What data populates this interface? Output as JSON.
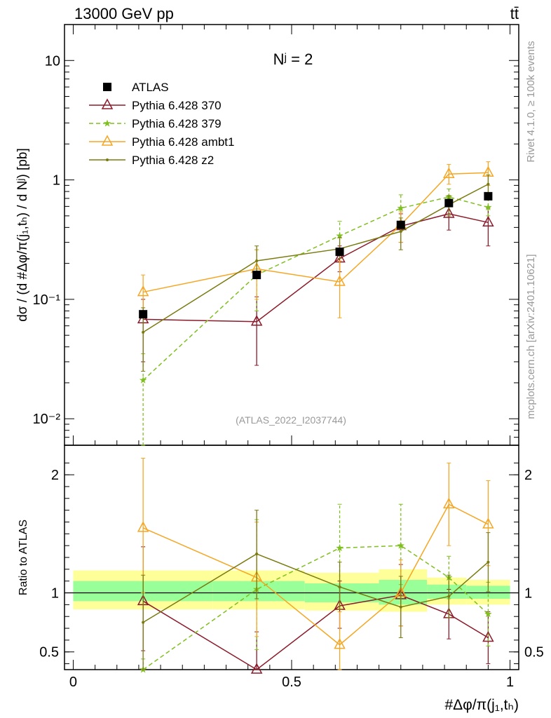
{
  "header": {
    "left": "13000 GeV pp",
    "right": "tt̄"
  },
  "side_labels": {
    "rivet": "Rivet 4.1.0, ≥ 100k events",
    "mcplots": "mcplots.cern.ch [arXiv:2401.10621]"
  },
  "chart_data": [
    {
      "type": "line",
      "panel": "main",
      "title": "Nʲ = 2",
      "watermark": "(ATLAS_2022_I2037744)",
      "ylabel": "dσ / (d #Δφ/π(j₁,tₕ) / d Nʲ) [pb]",
      "yscale": "log",
      "ylim": [
        0.006,
        20
      ],
      "xlim": [
        -0.02,
        1.02
      ],
      "yticks": [
        {
          "v": 0.01,
          "label": "10⁻²"
        },
        {
          "v": 0.1,
          "label": "10⁻¹"
        },
        {
          "v": 1,
          "label": "1"
        },
        {
          "v": 10,
          "label": "10"
        }
      ],
      "series": [
        {
          "name": "ATLAS",
          "color": "#000000",
          "marker": "square",
          "dash": "",
          "x": [
            0.16,
            0.42,
            0.61,
            0.75,
            0.86,
            0.95
          ],
          "y": [
            0.075,
            0.16,
            0.25,
            0.42,
            0.64,
            0.73
          ],
          "err": [
            0,
            0,
            0,
            0,
            0,
            0
          ]
        },
        {
          "name": "Pythia 6.428 370",
          "color": "#8b1a2a",
          "marker": "triangle",
          "dash": "",
          "x": [
            0.16,
            0.42,
            0.61,
            0.75,
            0.86,
            0.95
          ],
          "y": [
            0.068,
            0.065,
            0.22,
            0.41,
            0.52,
            0.44
          ],
          "lo": [
            0.03,
            0.028,
            0.17,
            0.3,
            0.38,
            0.28
          ],
          "hi": [
            0.1,
            0.105,
            0.28,
            0.52,
            0.66,
            0.58
          ]
        },
        {
          "name": "Pythia 6.428 379",
          "color": "#7fbf1f",
          "marker": "star",
          "dash": "6,4",
          "x": [
            0.16,
            0.42,
            0.61,
            0.75,
            0.86,
            0.95
          ],
          "y": [
            0.021,
            0.16,
            0.34,
            0.58,
            0.72,
            0.59
          ],
          "lo": [
            0.006,
            0.08,
            0.26,
            0.44,
            0.6,
            0.5
          ],
          "hi": [
            0.035,
            0.26,
            0.45,
            0.75,
            0.84,
            0.7
          ]
        },
        {
          "name": "Pythia 6.428 ambt1",
          "color": "#f5a623",
          "marker": "triangle",
          "dash": "",
          "x": [
            0.16,
            0.42,
            0.61,
            0.75,
            0.86,
            0.95
          ],
          "y": [
            0.115,
            0.18,
            0.14,
            0.42,
            1.12,
            1.15
          ],
          "lo": [
            0.08,
            0.1,
            0.07,
            0.3,
            0.92,
            0.9
          ],
          "hi": [
            0.16,
            0.26,
            0.21,
            0.54,
            1.35,
            1.42
          ]
        },
        {
          "name": "Pythia 6.428 z2",
          "color": "#7a7a10",
          "marker": "dot",
          "dash": "",
          "x": [
            0.16,
            0.42,
            0.61,
            0.75,
            0.86,
            0.95
          ],
          "y": [
            0.053,
            0.21,
            0.265,
            0.37,
            0.62,
            0.92
          ],
          "lo": [
            0.025,
            0.15,
            0.22,
            0.26,
            0.5,
            0.74
          ],
          "hi": [
            0.085,
            0.28,
            0.33,
            0.48,
            0.74,
            1.1
          ]
        }
      ]
    },
    {
      "type": "line",
      "panel": "ratio",
      "ylabel": "Ratio to ATLAS",
      "xlabel": "#Δφ/π(j₁,tₕ)",
      "ylim": [
        0.35,
        2.25
      ],
      "xlim": [
        -0.02,
        1.02
      ],
      "yticks": [
        {
          "v": 0.5,
          "label": "0.5"
        },
        {
          "v": 1,
          "label": "1"
        },
        {
          "v": 2,
          "label": "2"
        }
      ],
      "xticks": [
        {
          "v": 0,
          "label": "0"
        },
        {
          "v": 0.5,
          "label": "0.5"
        },
        {
          "v": 1,
          "label": "1"
        }
      ],
      "bands": {
        "edges": [
          0.0,
          0.32,
          0.53,
          0.7,
          0.81,
          0.9,
          1.0
        ],
        "yellow_lo": [
          0.86,
          0.86,
          0.85,
          0.84,
          0.9,
          0.9
        ],
        "yellow_hi": [
          1.19,
          1.19,
          1.17,
          1.2,
          1.13,
          1.11
        ],
        "green_lo": [
          0.93,
          0.93,
          0.92,
          0.9,
          0.95,
          0.95
        ],
        "green_hi": [
          1.1,
          1.1,
          1.08,
          1.11,
          1.07,
          1.06
        ]
      },
      "series": [
        {
          "name": "Pythia 6.428 370",
          "color": "#8b1a2a",
          "marker": "triangle",
          "dash": "",
          "x": [
            0.16,
            0.42,
            0.61,
            0.75,
            0.86,
            0.95
          ],
          "y": [
            0.93,
            0.35,
            0.89,
            0.98,
            0.82,
            0.62
          ],
          "lo": [
            0.51,
            0.2,
            0.7,
            0.72,
            0.61,
            0.4
          ],
          "hi": [
            1.39,
            0.67,
            1.1,
            1.24,
            1.03,
            0.84
          ]
        },
        {
          "name": "Pythia 6.428 379",
          "color": "#7fbf1f",
          "marker": "star",
          "dash": "6,4",
          "x": [
            0.16,
            0.42,
            0.61,
            0.75,
            0.86,
            0.95
          ],
          "y": [
            0.27,
            1.03,
            1.38,
            1.4,
            1.13,
            0.82
          ],
          "lo": [
            0.1,
            0.52,
            1.05,
            1.07,
            0.95,
            0.55
          ],
          "hi": [
            0.44,
            1.62,
            1.75,
            1.75,
            1.31,
            1.09
          ]
        },
        {
          "name": "Pythia 6.428 ambt1",
          "color": "#f5a623",
          "marker": "triangle",
          "dash": "",
          "x": [
            0.16,
            0.42,
            0.61,
            0.75,
            0.86,
            0.95
          ],
          "y": [
            1.55,
            1.13,
            0.56,
            1.0,
            1.75,
            1.58
          ],
          "lo": [
            1.0,
            0.63,
            0.28,
            0.72,
            1.4,
            1.23
          ],
          "hi": [
            2.14,
            1.6,
            0.84,
            1.28,
            2.1,
            1.95
          ]
        },
        {
          "name": "Pythia 6.428 z2",
          "color": "#7a7a10",
          "marker": "dot",
          "dash": "",
          "x": [
            0.16,
            0.42,
            0.61,
            0.75,
            0.86,
            0.95
          ],
          "y": [
            0.75,
            1.33,
            1.05,
            0.88,
            0.97,
            1.26
          ],
          "lo": [
            0.35,
            0.95,
            0.86,
            0.62,
            0.79,
            1.01
          ],
          "hi": [
            1.15,
            1.7,
            1.26,
            1.14,
            1.15,
            1.51
          ]
        }
      ]
    }
  ]
}
